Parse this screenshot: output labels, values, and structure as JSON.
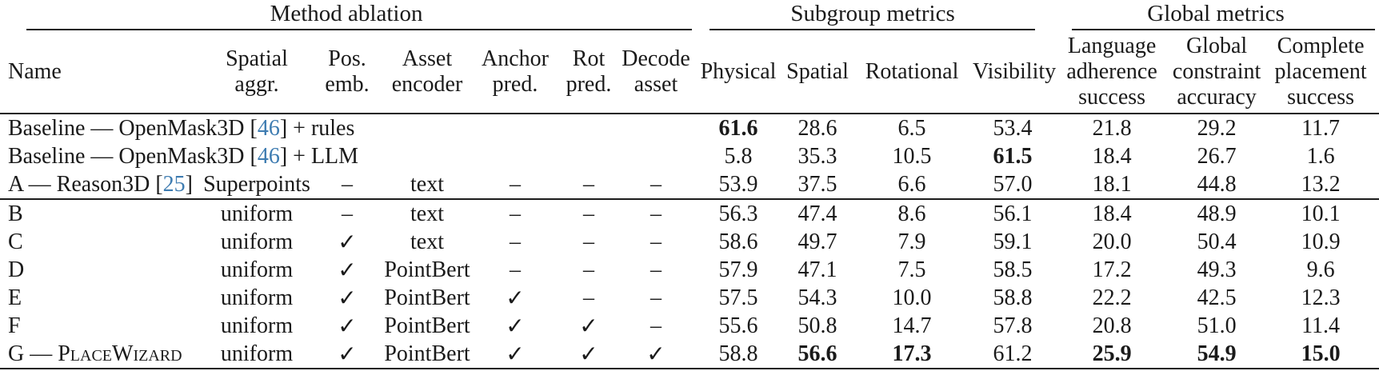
{
  "colors": {
    "text": "#1a1a1a",
    "rule": "#1c1c1c",
    "citation_blue": "#3e7cb1",
    "background": "#ffffff"
  },
  "table": {
    "groups": [
      {
        "label": "Method ablation",
        "span": 7
      },
      {
        "label": "Subgroup metrics",
        "span": 4
      },
      {
        "label": "Global metrics",
        "span": 3
      }
    ],
    "columns": [
      {
        "label": "Name"
      },
      {
        "label": "Spatial\naggr."
      },
      {
        "label": "Pos.\nemb."
      },
      {
        "label": "Asset\nencoder"
      },
      {
        "label": "Anchor\npred."
      },
      {
        "label": "Rot\npred."
      },
      {
        "label": "Decode\nasset"
      },
      {
        "label": "Physical"
      },
      {
        "label": "Spatial"
      },
      {
        "label": "Rotational"
      },
      {
        "label": "Visibility"
      },
      {
        "label": "Language\nadherence\nsuccess"
      },
      {
        "label": "Global\nconstraint\naccuracy"
      },
      {
        "label": "Complete\nplacement\nsuccess"
      }
    ],
    "check_glyph": "✓",
    "dash_glyph": "–",
    "rows": [
      {
        "name_parts": [
          {
            "text": "Baseline — OpenMask3D [",
            "style": "text"
          },
          {
            "text": "46",
            "style": "cite"
          },
          {
            "text": "] + rules",
            "style": "text"
          }
        ],
        "ablation": [
          "",
          "",
          "",
          "",
          "",
          ""
        ],
        "metrics": [
          "61.6",
          "28.6",
          "6.5",
          "53.4",
          "21.8",
          "29.2",
          "11.7"
        ],
        "bold": [
          0
        ],
        "rule_below": false
      },
      {
        "name_parts": [
          {
            "text": "Baseline — OpenMask3D [",
            "style": "text"
          },
          {
            "text": "46",
            "style": "cite"
          },
          {
            "text": "] + LLM",
            "style": "text"
          }
        ],
        "ablation": [
          "",
          "",
          "",
          "",
          "",
          ""
        ],
        "metrics": [
          "5.8",
          "35.3",
          "10.5",
          "61.5",
          "18.4",
          "26.7",
          "1.6"
        ],
        "bold": [
          3
        ],
        "rule_below": false
      },
      {
        "name_parts": [
          {
            "text": "A — Reason3D [",
            "style": "text"
          },
          {
            "text": "25",
            "style": "cite"
          },
          {
            "text": "]",
            "style": "text"
          }
        ],
        "ablation": [
          "Superpoints",
          "–",
          "text",
          "–",
          "–",
          "–"
        ],
        "metrics": [
          "53.9",
          "37.5",
          "6.6",
          "57.0",
          "18.1",
          "44.8",
          "13.2"
        ],
        "bold": [],
        "rule_below": true
      },
      {
        "name_parts": [
          {
            "text": "B",
            "style": "text"
          }
        ],
        "ablation": [
          "uniform",
          "–",
          "text",
          "–",
          "–",
          "–"
        ],
        "metrics": [
          "56.3",
          "47.4",
          "8.6",
          "56.1",
          "18.4",
          "48.9",
          "10.1"
        ],
        "bold": [],
        "rule_below": false
      },
      {
        "name_parts": [
          {
            "text": "C",
            "style": "text"
          }
        ],
        "ablation": [
          "uniform",
          "✓",
          "text",
          "–",
          "–",
          "–"
        ],
        "metrics": [
          "58.6",
          "49.7",
          "7.9",
          "59.1",
          "20.0",
          "50.4",
          "10.9"
        ],
        "bold": [],
        "rule_below": false
      },
      {
        "name_parts": [
          {
            "text": "D",
            "style": "text"
          }
        ],
        "ablation": [
          "uniform",
          "✓",
          "PointBert",
          "–",
          "–",
          "–"
        ],
        "metrics": [
          "57.9",
          "47.1",
          "7.5",
          "58.5",
          "17.2",
          "49.3",
          "9.6"
        ],
        "bold": [],
        "rule_below": false
      },
      {
        "name_parts": [
          {
            "text": "E",
            "style": "text"
          }
        ],
        "ablation": [
          "uniform",
          "✓",
          "PointBert",
          "✓",
          "–",
          "–"
        ],
        "metrics": [
          "57.5",
          "54.3",
          "10.0",
          "58.8",
          "22.2",
          "42.5",
          "12.3"
        ],
        "bold": [],
        "rule_below": false
      },
      {
        "name_parts": [
          {
            "text": "F",
            "style": "text"
          }
        ],
        "ablation": [
          "uniform",
          "✓",
          "PointBert",
          "✓",
          "✓",
          "–"
        ],
        "metrics": [
          "55.6",
          "50.8",
          "14.7",
          "57.8",
          "20.8",
          "51.0",
          "11.4"
        ],
        "bold": [],
        "rule_below": false
      },
      {
        "name_parts": [
          {
            "text": "G — ",
            "style": "text"
          },
          {
            "text": "PlaceWizard",
            "style": "sc"
          }
        ],
        "ablation": [
          "uniform",
          "✓",
          "PointBert",
          "✓",
          "✓",
          "✓"
        ],
        "metrics": [
          "58.8",
          "56.6",
          "17.3",
          "61.2",
          "25.9",
          "54.9",
          "15.0"
        ],
        "bold": [
          1,
          2,
          4,
          5,
          6
        ],
        "rule_below": false
      }
    ]
  }
}
